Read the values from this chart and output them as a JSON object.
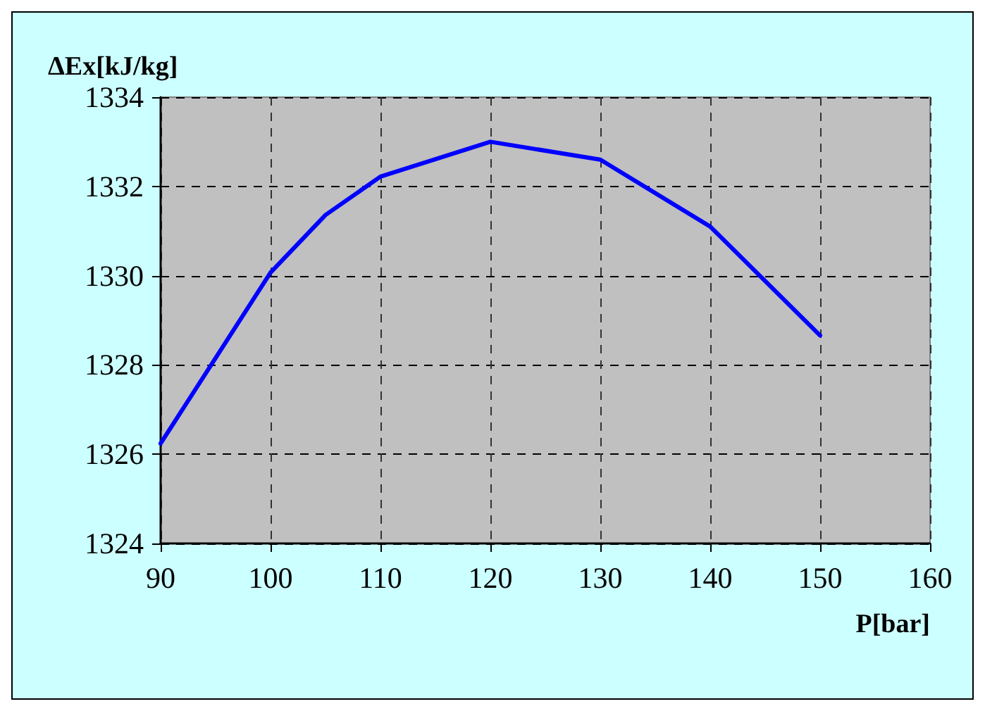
{
  "chart_data": {
    "type": "line",
    "xlabel": "P[bar]",
    "ylabel": "ΔEx[kJ/kg]",
    "x": [
      90,
      100,
      105,
      110,
      120,
      130,
      140,
      150
    ],
    "series": [
      {
        "color": "#0000ff",
        "values": [
          1326.24,
          1330.07,
          1331.36,
          1332.22,
          1333.0,
          1332.6,
          1331.1,
          1328.66
        ]
      }
    ],
    "xlim": [
      90,
      160
    ],
    "xticks": [
      90,
      100,
      110,
      120,
      130,
      140,
      150,
      160
    ],
    "ylim": [
      1324,
      1334
    ],
    "yticks": [
      1324,
      1326,
      1328,
      1330,
      1332,
      1334
    ],
    "grid": true,
    "marker": "none",
    "line_style": "solid"
  }
}
